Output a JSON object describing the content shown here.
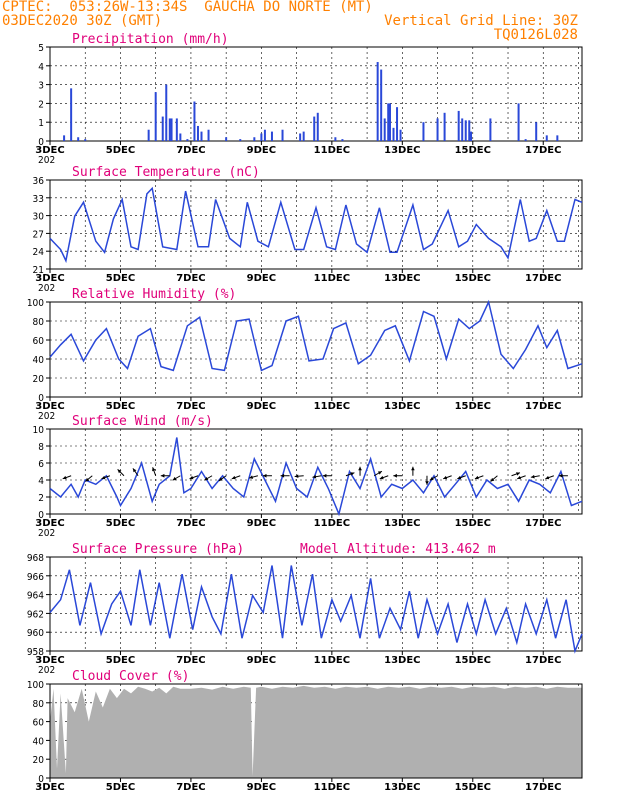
{
  "header": {
    "line1_left": "CPTEC:  053:26W-13:34S  GAUCHA DO NORTE (MT)",
    "line2_left": "03DEC2020 30Z (GMT)",
    "line2_right": "Vertical Grid Line: 30Z",
    "line3_right": "TQ0126L028"
  },
  "x_axis": {
    "labels": [
      "3DEC",
      "5DEC",
      "7DEC",
      "9DEC",
      "11DEC",
      "13DEC",
      "15DEC",
      "17DEC"
    ],
    "label_days": [
      3,
      5,
      7,
      9,
      11,
      13,
      15,
      17
    ],
    "range_days": [
      3,
      18.1
    ],
    "year_fragment": "202"
  },
  "colors": {
    "line": "#2a48d8",
    "title": "#e0007a",
    "header": "#ff8000",
    "cloud": "#b0b0b0",
    "axis": "#000000"
  },
  "chart_data": [
    {
      "type": "bar",
      "title": "Precipitation (mm/h)",
      "ylim": [
        0,
        5
      ],
      "yticks": [
        "0",
        "1",
        "2",
        "3",
        "4",
        "5"
      ],
      "x": [
        3.4,
        3.6,
        3.8,
        5.8,
        4.0,
        6.0,
        6.2,
        6.3,
        6.4,
        6.45,
        6.6,
        6.7,
        6.9,
        7.1,
        7.2,
        7.3,
        7.5,
        8.0,
        8.4,
        8.8,
        9.0,
        9.1,
        9.3,
        9.6,
        10.1,
        10.2,
        10.5,
        10.6,
        11.1,
        11.3,
        12.3,
        12.4,
        12.5,
        12.6,
        12.65,
        12.75,
        12.85,
        12.95,
        13.6,
        14.0,
        14.2,
        14.6,
        14.7,
        14.8,
        14.9,
        14.95,
        15.5,
        16.3,
        16.5,
        16.8,
        17.1,
        17.4
      ],
      "values": [
        0.3,
        2.8,
        0.2,
        0.6,
        0.1,
        2.6,
        1.3,
        3.0,
        1.2,
        1.2,
        1.2,
        0.4,
        0.1,
        2.1,
        0.8,
        0.5,
        0.6,
        0.2,
        0.1,
        0.2,
        0.4,
        0.6,
        0.5,
        0.6,
        0.4,
        0.5,
        1.3,
        1.5,
        0.2,
        0.1,
        4.2,
        3.8,
        1.2,
        2.0,
        2.0,
        0.7,
        1.8,
        0.6,
        1.0,
        1.2,
        1.5,
        1.6,
        1.2,
        1.1,
        1.1,
        0.5,
        1.2,
        2.0,
        0.1,
        1.0,
        0.3,
        0.3
      ]
    },
    {
      "type": "line",
      "title": "Surface Temperature (nC)",
      "ylim": [
        21,
        37
      ],
      "yticks": [
        "21",
        "24",
        "27",
        "30",
        "33",
        "36"
      ],
      "x": [
        3.0,
        3.3,
        3.45,
        3.7,
        3.95,
        4.3,
        4.55,
        4.8,
        5.05,
        5.3,
        5.5,
        5.75,
        5.9,
        6.2,
        6.6,
        6.85,
        7.2,
        7.5,
        7.7,
        8.1,
        8.4,
        8.6,
        8.9,
        9.2,
        9.55,
        9.95,
        10.2,
        10.55,
        10.85,
        11.1,
        11.4,
        11.7,
        12.0,
        12.35,
        12.65,
        12.85,
        13.3,
        13.6,
        13.85,
        14.3,
        14.6,
        14.85,
        15.1,
        15.45,
        15.8,
        16.0,
        16.35,
        16.6,
        16.8,
        17.1,
        17.4,
        17.6,
        17.9,
        18.1
      ],
      "values": [
        26.5,
        24.5,
        22.5,
        30.5,
        33,
        26,
        24,
        30,
        33.5,
        25,
        24.5,
        34.5,
        35.5,
        25,
        24.5,
        35,
        25,
        25,
        33.5,
        26.5,
        25,
        33,
        26,
        25,
        33,
        24.5,
        24.5,
        32,
        25,
        24.5,
        32.5,
        25.5,
        24,
        32,
        24,
        24,
        32.5,
        24.5,
        25.5,
        31.5,
        25,
        26,
        29,
        26.5,
        25,
        23,
        33.5,
        26,
        26.5,
        31.5,
        26,
        26,
        33.5,
        33
      ]
    },
    {
      "type": "line",
      "title": "Relative Humidity (%)",
      "ylim": [
        0,
        100
      ],
      "yticks": [
        "0",
        "20",
        "40",
        "60",
        "80",
        "100"
      ],
      "x": [
        3.0,
        3.3,
        3.6,
        3.95,
        4.3,
        4.6,
        4.95,
        5.2,
        5.5,
        5.85,
        6.15,
        6.5,
        6.9,
        7.25,
        7.6,
        7.95,
        8.3,
        8.65,
        9.0,
        9.3,
        9.7,
        10.05,
        10.35,
        10.75,
        11.05,
        11.4,
        11.75,
        12.1,
        12.5,
        12.8,
        13.2,
        13.6,
        13.9,
        14.25,
        14.6,
        14.9,
        15.2,
        15.45,
        15.8,
        16.15,
        16.5,
        16.85,
        17.1,
        17.4,
        17.7,
        18.1
      ],
      "values": [
        42,
        55,
        66,
        38,
        60,
        72,
        40,
        30,
        64,
        72,
        32,
        28,
        75,
        84,
        30,
        28,
        80,
        82,
        28,
        33,
        80,
        85,
        38,
        40,
        72,
        78,
        35,
        44,
        70,
        75,
        38,
        90,
        85,
        40,
        82,
        72,
        80,
        100,
        45,
        30,
        50,
        75,
        52,
        70,
        30,
        35
      ]
    },
    {
      "type": "line",
      "title": "Surface Wind (m/s)",
      "ylim": [
        0,
        10
      ],
      "yticks": [
        "0",
        "2",
        "4",
        "6",
        "8",
        "10"
      ],
      "x": [
        3.0,
        3.3,
        3.6,
        3.8,
        4.0,
        4.3,
        4.6,
        4.9,
        5.0,
        5.3,
        5.6,
        5.9,
        6.1,
        6.4,
        6.6,
        6.8,
        7.0,
        7.3,
        7.6,
        7.9,
        8.2,
        8.5,
        8.8,
        9.1,
        9.4,
        9.7,
        10.0,
        10.3,
        10.6,
        10.9,
        11.2,
        11.5,
        11.8,
        12.1,
        12.4,
        12.7,
        13.0,
        13.3,
        13.6,
        13.9,
        14.2,
        14.5,
        14.8,
        15.1,
        15.4,
        15.7,
        16.0,
        16.3,
        16.6,
        16.9,
        17.2,
        17.5,
        17.8,
        18.1
      ],
      "values": [
        3,
        2,
        3.5,
        2,
        4,
        3.5,
        4.5,
        2,
        1,
        3,
        6,
        1.5,
        3.5,
        4.5,
        9,
        2.5,
        3,
        5,
        3,
        4.5,
        3,
        2,
        6.5,
        4,
        1.5,
        6,
        3,
        2,
        5.5,
        3,
        0,
        5,
        3,
        6.5,
        2,
        3.5,
        3,
        4,
        2.5,
        4.5,
        2,
        3.5,
        5,
        2,
        4,
        3,
        3.5,
        1.5,
        4,
        3.5,
        2.5,
        5,
        1,
        1.5
      ],
      "arrow_days": [
        3.6,
        4.2,
        4.7,
        5.1,
        5.5,
        6.0,
        6.4,
        6.7,
        7.2,
        7.6,
        8.0,
        8.4,
        8.9,
        9.3,
        9.8,
        10.2,
        10.7,
        11.0,
        11.4,
        11.8,
        12.2,
        12.6,
        13.0,
        13.3,
        13.7,
        14.0,
        14.4,
        14.8,
        15.3,
        15.7,
        16.1,
        16.5,
        16.9,
        17.3,
        17.7
      ],
      "arrow_angles": [
        200,
        220,
        200,
        135,
        125,
        110,
        180,
        210,
        200,
        210,
        215,
        200,
        195,
        180,
        180,
        185,
        190,
        180,
        20,
        90,
        30,
        200,
        180,
        90,
        270,
        210,
        200,
        200,
        200,
        220,
        20,
        200,
        190,
        200,
        180
      ]
    },
    {
      "type": "line",
      "title": "Surface Pressure (hPa)",
      "subtitle": "Model Altitude: 413.462 m",
      "ylim": [
        957,
        968
      ],
      "yticks": [
        "958",
        "960",
        "962",
        "964",
        "966",
        "968"
      ],
      "x": [
        3.0,
        3.3,
        3.55,
        3.85,
        4.15,
        4.45,
        4.75,
        5.0,
        5.3,
        5.55,
        5.85,
        6.1,
        6.4,
        6.75,
        7.05,
        7.3,
        7.6,
        7.85,
        8.15,
        8.45,
        8.75,
        9.05,
        9.3,
        9.6,
        9.85,
        10.15,
        10.45,
        10.7,
        11.0,
        11.25,
        11.55,
        11.8,
        12.1,
        12.35,
        12.65,
        12.95,
        13.2,
        13.45,
        13.7,
        14.0,
        14.3,
        14.55,
        14.85,
        15.1,
        15.35,
        15.65,
        15.95,
        16.25,
        16.5,
        16.8,
        17.1,
        17.35,
        17.65,
        17.9,
        18.1
      ],
      "values": [
        961.5,
        963,
        966.5,
        960,
        965,
        959,
        962.5,
        964,
        960,
        966.5,
        960,
        965,
        958.5,
        966,
        959.5,
        964.5,
        961,
        959,
        966,
        958.5,
        963.5,
        961.5,
        967,
        958.5,
        967,
        960,
        966,
        958.5,
        963,
        960.5,
        963.5,
        958.5,
        965.5,
        958.5,
        962,
        959.5,
        964,
        958.5,
        963,
        959,
        962.5,
        958,
        962.5,
        959,
        963,
        959,
        962,
        958,
        962.5,
        959,
        963,
        958.5,
        963,
        957,
        959
      ]
    },
    {
      "type": "area",
      "title": "Cloud Cover (%)",
      "ylim": [
        0,
        100
      ],
      "yticks": [
        "0",
        "20",
        "40",
        "60",
        "80",
        "100"
      ],
      "x": [
        3.0,
        3.1,
        3.2,
        3.3,
        3.45,
        3.5,
        3.7,
        3.9,
        4.1,
        4.3,
        4.5,
        4.7,
        4.9,
        5.1,
        5.3,
        5.5,
        5.7,
        5.9,
        6.1,
        6.3,
        6.5,
        6.7,
        7.0,
        7.3,
        7.6,
        7.9,
        8.2,
        8.5,
        8.7,
        8.75,
        8.85,
        9.0,
        9.3,
        9.6,
        9.9,
        10.2,
        10.5,
        10.8,
        11.1,
        11.4,
        11.7,
        12.0,
        12.3,
        12.6,
        12.9,
        13.2,
        13.5,
        13.8,
        14.1,
        14.4,
        14.7,
        15.0,
        15.3,
        15.6,
        15.9,
        16.2,
        16.5,
        16.8,
        17.1,
        17.4,
        17.7,
        18.1
      ],
      "values": [
        60,
        95,
        10,
        90,
        5,
        85,
        70,
        95,
        60,
        92,
        75,
        95,
        85,
        95,
        90,
        97,
        95,
        92,
        96,
        90,
        97,
        95,
        95,
        96,
        94,
        97,
        95,
        97,
        96,
        2,
        96,
        97,
        95,
        97,
        96,
        98,
        96,
        97,
        95,
        97,
        96,
        97,
        95,
        97,
        96,
        97,
        95,
        97,
        96,
        97,
        95,
        97,
        96,
        97,
        95,
        97,
        96,
        97,
        95,
        97,
        96,
        96
      ]
    }
  ]
}
